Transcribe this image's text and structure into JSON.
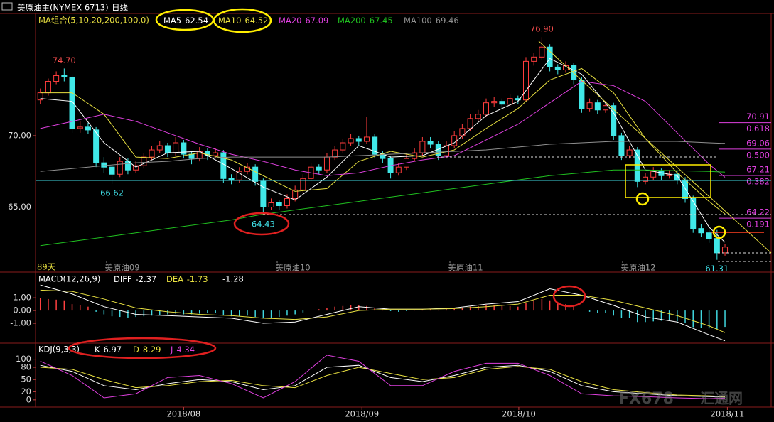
{
  "chart_data": [
    {
      "type": "candlestick",
      "title": "美原油主(NYMEX 6713)",
      "period": "日线",
      "legend_title": "MA组合(5,10,20,200,100,0)",
      "days_label": "89天",
      "contracts": [
        "美原油09",
        "美原油10",
        "美原油11",
        "美原油12"
      ],
      "up_color": "#ff3c3c",
      "down_color": "#40e8e8",
      "open": [
        72.5,
        73.0,
        73.8,
        74.2,
        74.1,
        70.5,
        70.6,
        70.4,
        68.1,
        67.8,
        67.3,
        68.2,
        67.6,
        67.9,
        68.5,
        69.0,
        69.3,
        68.8,
        69.5,
        68.7,
        68.4,
        68.9,
        68.6,
        68.8,
        67.0,
        66.9,
        67.5,
        67.8,
        66.8,
        65.0,
        65.3,
        65.1,
        65.6,
        66.2,
        67.0,
        67.8,
        67.6,
        68.5,
        69.0,
        69.5,
        69.8,
        69.6,
        69.9,
        68.7,
        68.4,
        67.4,
        67.8,
        68.4,
        68.8,
        69.6,
        69.4,
        68.6,
        69.3,
        70.0,
        70.5,
        71.2,
        71.5,
        72.3,
        72.4,
        72.2,
        72.6,
        72.5,
        75.2,
        75.5,
        76.2,
        74.8,
        74.6,
        74.9,
        73.9,
        71.9,
        72.3,
        71.8,
        72.1,
        70.0,
        68.6,
        69.0,
        66.8,
        67.1,
        67.5,
        67.2,
        67.3,
        66.9,
        65.6,
        63.5,
        63.2,
        62.8,
        61.8
      ],
      "high": [
        73.3,
        74.0,
        74.5,
        74.7,
        74.3,
        71.0,
        70.9,
        70.6,
        68.5,
        68.0,
        68.5,
        68.4,
        68.2,
        68.8,
        69.3,
        69.6,
        69.5,
        69.9,
        69.7,
        68.9,
        69.2,
        69.1,
        69.1,
        69.0,
        67.3,
        67.8,
        68.1,
        68.0,
        67.0,
        65.6,
        65.5,
        65.9,
        66.5,
        67.3,
        68.1,
        68.0,
        68.8,
        69.3,
        69.8,
        70.1,
        70.0,
        71.3,
        70.1,
        68.9,
        68.6,
        68.1,
        68.7,
        69.1,
        69.9,
        69.9,
        69.6,
        69.6,
        70.3,
        70.8,
        71.5,
        71.8,
        72.6,
        72.7,
        72.6,
        72.9,
        72.8,
        75.5,
        75.8,
        76.9,
        76.4,
        75.0,
        75.2,
        75.1,
        74.1,
        72.6,
        72.5,
        72.4,
        72.3,
        70.2,
        69.3,
        69.2,
        67.4,
        67.8,
        67.7,
        67.6,
        67.5,
        67.1,
        65.8,
        63.8,
        63.4,
        63.4,
        62.4
      ],
      "low": [
        72.2,
        72.8,
        73.6,
        73.8,
        70.2,
        70.2,
        70.1,
        67.8,
        67.4,
        66.62,
        67.1,
        67.3,
        67.4,
        67.7,
        68.3,
        68.8,
        68.5,
        68.6,
        68.4,
        68.0,
        68.2,
        68.3,
        68.4,
        66.7,
        66.6,
        66.7,
        67.3,
        66.5,
        64.43,
        64.8,
        64.8,
        64.9,
        65.4,
        66.0,
        66.8,
        67.3,
        67.4,
        68.3,
        68.8,
        69.3,
        69.3,
        69.4,
        68.4,
        68.1,
        67.0,
        67.2,
        67.6,
        68.2,
        68.6,
        69.1,
        68.3,
        68.4,
        69.1,
        69.8,
        70.3,
        71.0,
        71.3,
        72.0,
        71.9,
        72.0,
        72.2,
        72.4,
        74.9,
        75.3,
        74.5,
        74.3,
        74.4,
        73.6,
        71.6,
        71.7,
        71.5,
        71.6,
        69.7,
        68.3,
        68.4,
        66.4,
        66.6,
        66.9,
        66.9,
        67.0,
        66.6,
        65.3,
        63.2,
        62.9,
        62.5,
        61.31,
        61.6
      ],
      "close": [
        73.0,
        73.8,
        74.2,
        74.1,
        70.5,
        70.6,
        70.4,
        68.1,
        67.8,
        67.3,
        68.2,
        67.6,
        67.9,
        68.5,
        69.0,
        69.3,
        68.8,
        69.5,
        68.7,
        68.4,
        68.9,
        68.6,
        68.8,
        67.0,
        66.9,
        67.5,
        67.8,
        66.8,
        65.0,
        65.3,
        65.1,
        65.6,
        66.2,
        67.0,
        67.8,
        67.6,
        68.5,
        69.0,
        69.5,
        69.8,
        69.6,
        69.9,
        68.7,
        68.4,
        67.4,
        67.8,
        68.4,
        68.8,
        69.6,
        69.4,
        68.6,
        69.3,
        70.0,
        70.5,
        71.2,
        71.5,
        72.3,
        72.4,
        72.2,
        72.6,
        72.5,
        75.2,
        75.5,
        76.2,
        74.8,
        74.6,
        74.9,
        73.9,
        71.9,
        72.3,
        71.8,
        72.1,
        70.0,
        68.6,
        69.0,
        66.8,
        67.1,
        67.5,
        67.2,
        67.3,
        66.9,
        65.6,
        63.5,
        63.2,
        62.8,
        61.8,
        62.2
      ],
      "price_labels": [
        {
          "value": 74.7,
          "label": "74.70"
        },
        {
          "value": 66.62,
          "label": "66.62"
        },
        {
          "value": 64.43,
          "label": "64.43"
        },
        {
          "value": 76.9,
          "label": "76.90"
        },
        {
          "value": 61.31,
          "label": "61.31"
        }
      ],
      "ma_x": [
        0,
        4,
        8,
        12,
        16,
        20,
        24,
        28,
        32,
        36,
        40,
        44,
        48,
        52,
        56,
        60,
        64,
        68,
        72,
        76,
        80,
        84,
        86
      ],
      "series": [
        {
          "name": "MA5",
          "color": "#ffffff",
          "values": [
            72.6,
            72.4,
            69.5,
            67.8,
            68.8,
            68.9,
            67.7,
            66.4,
            65.5,
            67.1,
            69.3,
            68.5,
            68.6,
            69.5,
            71.4,
            72.4,
            75.4,
            74.3,
            71.6,
            67.6,
            67.2,
            63.6,
            62.54
          ]
        },
        {
          "name": "MA10",
          "color": "#e8e040",
          "values": [
            73.0,
            73.0,
            71.5,
            68.5,
            68.4,
            68.8,
            68.3,
            67.2,
            66.1,
            66.3,
            68.2,
            68.9,
            68.5,
            69.0,
            70.5,
            71.9,
            73.9,
            74.7,
            73.0,
            69.8,
            67.4,
            65.4,
            64.52
          ]
        },
        {
          "name": "MA20",
          "color": "#e040e0",
          "values": [
            70.5,
            71.0,
            71.5,
            71.0,
            70.2,
            69.4,
            68.7,
            68.2,
            67.6,
            67.2,
            67.4,
            67.9,
            68.3,
            68.6,
            69.7,
            70.8,
            72.3,
            73.8,
            73.5,
            72.4,
            70.2,
            68.0,
            67.09
          ]
        },
        {
          "name": "MA200",
          "color": "#20c020",
          "values": [
            62.3,
            62.6,
            62.9,
            63.2,
            63.5,
            63.8,
            64.1,
            64.5,
            64.8,
            65.1,
            65.4,
            65.7,
            66.0,
            66.3,
            66.6,
            66.9,
            67.2,
            67.4,
            67.6,
            67.6,
            67.55,
            67.5,
            67.45
          ]
        },
        {
          "name": "MA100",
          "color": "#909090",
          "values": [
            67.5,
            67.7,
            67.9,
            68.1,
            68.2,
            68.4,
            68.5,
            68.5,
            68.5,
            68.5,
            68.6,
            68.7,
            68.8,
            68.9,
            69.0,
            69.2,
            69.4,
            69.5,
            69.6,
            69.6,
            69.6,
            69.5,
            69.46
          ]
        }
      ],
      "fib_levels": [
        {
          "price": 70.91,
          "ratio": 0.618
        },
        {
          "price": 69.06,
          "ratio": {
            "value": 0.5,
            "label": "0.500"
          }
        },
        {
          "price": 67.21,
          "ratio": 0.382
        },
        {
          "price": 64.22,
          "ratio": 0.191
        }
      ],
      "ylim": [
        60.5,
        78.5
      ],
      "yticks": [
        {
          "value": 65,
          "label": "65.00"
        },
        {
          "value": 70,
          "label": "70.00"
        }
      ],
      "xlim": [
        -0.6,
        91.8
      ],
      "xticks": [
        {
          "value": 18,
          "label": "2018/08"
        },
        {
          "value": 40.4,
          "label": "2018/09"
        },
        {
          "value": 60.1,
          "label": "2018/10"
        },
        {
          "value": 86.3,
          "label": "2018/11"
        }
      ]
    },
    {
      "type": "macd",
      "title": "MACD(12,26,9)",
      "bar_name": "MACD",
      "values": [
        1.0,
        0.9,
        0.85,
        0.8,
        0.5,
        0.4,
        0.3,
        -0.1,
        -0.3,
        -0.45,
        -0.5,
        -0.55,
        -0.5,
        -0.45,
        -0.4,
        -0.35,
        -0.3,
        -0.25,
        -0.3,
        -0.3,
        -0.25,
        -0.2,
        -0.2,
        -0.35,
        -0.45,
        -0.45,
        -0.4,
        -0.5,
        -0.6,
        -0.55,
        -0.5,
        -0.4,
        -0.3,
        -0.15,
        0.0,
        0.1,
        0.2,
        0.3,
        0.35,
        0.4,
        0.4,
        0.35,
        0.2,
        0.1,
        -0.05,
        -0.1,
        -0.05,
        0.05,
        0.1,
        0.1,
        0.05,
        0.1,
        0.15,
        0.2,
        0.3,
        0.35,
        0.4,
        0.4,
        0.35,
        0.35,
        0.3,
        0.6,
        0.8,
        0.9,
        0.8,
        0.6,
        0.5,
        0.35,
        0.0,
        -0.1,
        -0.2,
        -0.2,
        -0.4,
        -0.6,
        -0.6,
        -0.9,
        -0.9,
        -0.85,
        -0.8,
        -0.8,
        -0.85,
        -1.0,
        -1.3,
        -1.35,
        -1.4,
        -1.45,
        -1.28
      ],
      "up_color": "#ff4040",
      "down_color": "#40d8e0",
      "series": [
        {
          "name": "DIFF",
          "color": "#ffffff",
          "values": [
            2.0,
            1.3,
            0.3,
            -0.3,
            -0.4,
            -0.5,
            -0.6,
            -1.0,
            -0.9,
            -0.3,
            0.3,
            0.1,
            0.1,
            0.2,
            0.5,
            0.7,
            1.7,
            1.2,
            0.4,
            -0.5,
            -0.9,
            -1.9,
            -2.37
          ]
        },
        {
          "name": "DEA",
          "color": "#e8e040",
          "values": [
            1.6,
            1.5,
            0.9,
            0.2,
            -0.1,
            -0.3,
            -0.4,
            -0.6,
            -0.7,
            -0.5,
            0.0,
            0.1,
            0.1,
            0.15,
            0.3,
            0.5,
            1.2,
            1.2,
            0.8,
            0.2,
            -0.4,
            -1.2,
            -1.73
          ]
        }
      ],
      "ylim": [
        -2.5,
        2.9
      ],
      "yticks": [
        {
          "value": 1,
          "label": "1.00"
        },
        {
          "value": 0,
          "label": "0.00"
        },
        {
          "value": -1,
          "label": "-1.00"
        }
      ]
    },
    {
      "type": "kdj",
      "title": "KDJ(9,3,3)",
      "series": [
        {
          "name": "K",
          "color": "#ffffff",
          "values": [
            85,
            70,
            35,
            25,
            40,
            50,
            45,
            25,
            35,
            80,
            85,
            55,
            45,
            60,
            80,
            85,
            70,
            35,
            20,
            15,
            10,
            8,
            6.97
          ]
        },
        {
          "name": "D",
          "color": "#e8e040",
          "values": [
            80,
            75,
            50,
            30,
            35,
            45,
            48,
            35,
            30,
            60,
            80,
            65,
            50,
            55,
            75,
            82,
            75,
            45,
            25,
            18,
            12,
            10,
            8.29
          ]
        },
        {
          "name": "J",
          "color": "#e040e0",
          "values": [
            95,
            60,
            5,
            15,
            55,
            60,
            40,
            5,
            45,
            110,
            95,
            35,
            35,
            70,
            90,
            90,
            60,
            15,
            10,
            8,
            5,
            3,
            4.34
          ]
        }
      ],
      "ylim": [
        -16,
        136
      ],
      "yticks": [
        100,
        80,
        50,
        20,
        0
      ]
    }
  ],
  "watermark": [
    "FX678",
    "汇通网"
  ]
}
